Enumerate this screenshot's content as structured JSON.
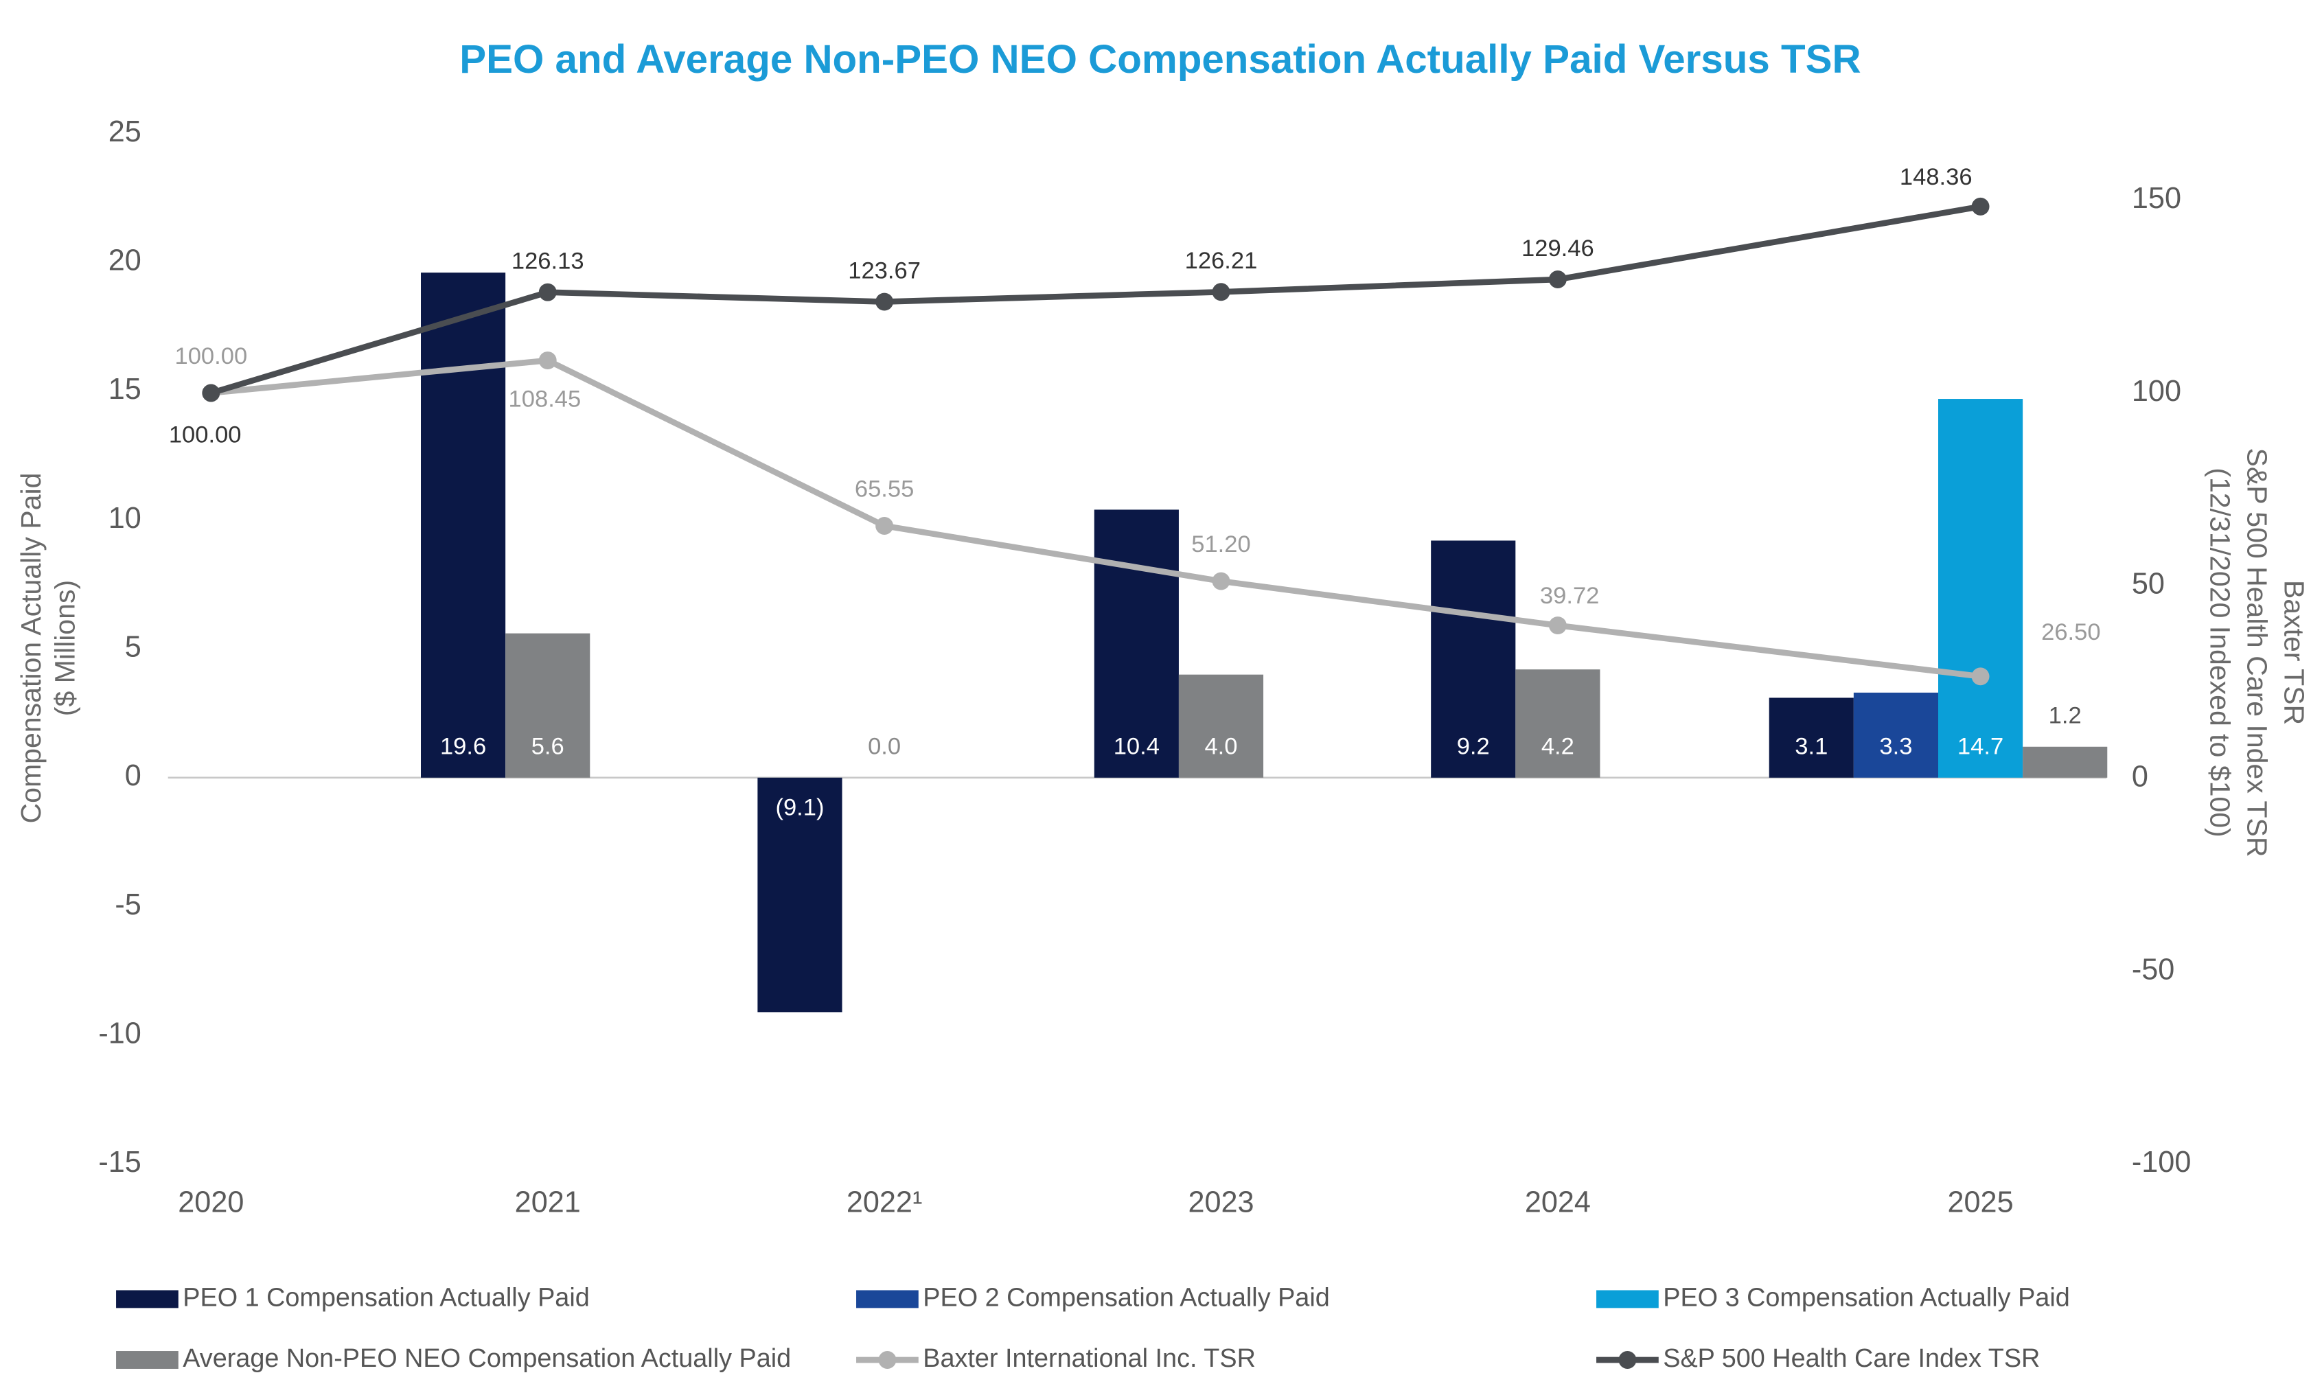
{
  "chart_data": {
    "type": "bar",
    "title": "PEO and Average Non-PEO NEO Compensation Actually Paid Versus TSR",
    "categories": [
      "2020",
      "2021",
      "2022¹",
      "2023",
      "2024",
      "2025"
    ],
    "y_axis_label": [
      "Compensation Actually Paid",
      "($ Millions)"
    ],
    "y2_axis_label": [
      "Baxter TSR",
      "S&P 500 Health Care Index TSR",
      "(12/31/2020 Indexed to $100)"
    ],
    "ylim": [
      -15,
      25
    ],
    "yticks": [
      -15,
      -10,
      -5,
      0,
      5,
      10,
      15,
      20,
      25
    ],
    "y2lim": [
      -100,
      167.31
    ],
    "y2ticks": [
      -100,
      -50,
      0,
      50,
      100,
      150
    ],
    "grid": false,
    "legend_position": "bottom",
    "series": [
      {
        "name": "PEO 1 Compensation Actually Paid",
        "type": "bar",
        "color": "#0b1846",
        "values": [
          null,
          19.6,
          -9.1,
          10.4,
          9.2,
          3.1
        ],
        "value_labels": [
          null,
          "19.6",
          "(9.1)",
          "10.4",
          "9.2",
          "3.1"
        ]
      },
      {
        "name": "PEO 2 Compensation Actually Paid",
        "type": "bar",
        "color": "#1a4799",
        "values": [
          null,
          null,
          null,
          null,
          null,
          3.3
        ],
        "value_labels": [
          null,
          null,
          null,
          null,
          null,
          "3.3"
        ]
      },
      {
        "name": "PEO 3 Compensation Actually Paid",
        "type": "bar",
        "color": "#0a9fd8",
        "values": [
          null,
          null,
          null,
          null,
          null,
          14.7
        ],
        "value_labels": [
          null,
          null,
          null,
          null,
          null,
          "14.7"
        ]
      },
      {
        "name": "Average Non-PEO NEO Compensation Actually Paid",
        "type": "bar",
        "color": "#808284",
        "values": [
          null,
          5.6,
          0.0,
          4.0,
          4.2,
          1.2
        ],
        "value_labels": [
          null,
          "5.6",
          "0.0",
          "4.0",
          "4.2",
          "1.2"
        ]
      },
      {
        "name": "Baxter International Inc. TSR",
        "type": "line",
        "axis": "y2",
        "color": "#b1b1b1",
        "values": [
          100,
          108.45,
          65.55,
          51.2,
          39.72,
          26.5
        ],
        "value_labels": [
          "100.00",
          "108.45",
          "65.55",
          "51.20",
          "39.72",
          "26.50"
        ]
      },
      {
        "name": "S&P 500 Health Care Index TSR",
        "type": "line",
        "axis": "y2",
        "color": "#4a4d51",
        "values": [
          100,
          126.13,
          123.67,
          126.21,
          129.46,
          148.36
        ],
        "value_labels": [
          "100.00",
          "126.13",
          "123.67",
          "126.21",
          "129.46",
          "148.36"
        ]
      }
    ]
  }
}
